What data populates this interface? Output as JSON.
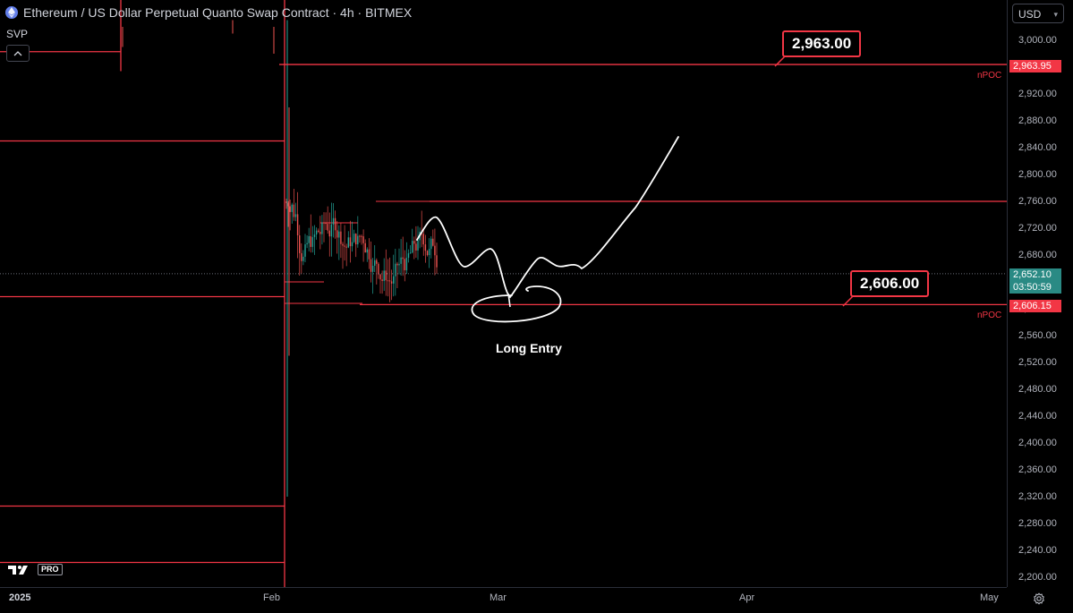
{
  "header": {
    "title": "Ethereum / US Dollar Perpetual Quanto Swap Contract · 4h · BITMEX",
    "indicator": "SVP",
    "collapse_icon": "chevron-up-icon"
  },
  "currency": {
    "label": "USD"
  },
  "chart_data": {
    "type": "line",
    "y_axis": {
      "ticks": [
        "3,000.00",
        "2,960.00",
        "2,920.00",
        "2,880.00",
        "2,840.00",
        "2,800.00",
        "2,760.00",
        "2,720.00",
        "2,680.00",
        "2,640.00",
        "2,600.00",
        "2,560.00",
        "2,520.00",
        "2,480.00",
        "2,440.00",
        "2,400.00",
        "2,360.00",
        "2,320.00",
        "2,280.00",
        "2,240.00",
        "2,200.00"
      ],
      "ylim": [
        2180,
        3032
      ]
    },
    "x_axis": {
      "ticks": [
        {
          "label": "2025",
          "bold": true
        },
        {
          "label": "Feb",
          "bold": false
        },
        {
          "label": "Mar",
          "bold": false
        },
        {
          "label": "Apr",
          "bold": false
        },
        {
          "label": "May",
          "bold": false
        }
      ]
    },
    "current_price": {
      "value": 2652.1,
      "label": "2,652.10",
      "countdown": "03:50:59"
    },
    "volume_profile_levels": [
      {
        "price": 2983,
        "from": "2025",
        "to": "Jan-mid"
      },
      {
        "price": 2954,
        "from": "Jan-mid",
        "to": "Jan-end"
      },
      {
        "price": 2850,
        "from": "2025",
        "to": "Feb"
      },
      {
        "price": 2618,
        "from": "2025",
        "to": "Feb"
      },
      {
        "price": 2306,
        "from": "2025",
        "to": "Feb"
      },
      {
        "price": 2222,
        "from": "2025",
        "to": "Feb"
      }
    ],
    "npoc_levels": [
      {
        "value": 2963.95,
        "label": "2,963.95",
        "tag": "nPOC"
      },
      {
        "value": 2606.15,
        "label": "2,606.15",
        "tag": "nPOC"
      }
    ],
    "resistance_level": {
      "value": 2760
    },
    "callouts": [
      {
        "label": "2,963.00",
        "value": 2963.0
      },
      {
        "label": "2,606.00",
        "value": 2606.0
      }
    ],
    "annotation": {
      "label": "Long Entry"
    },
    "colors": {
      "level": "#f23645",
      "up": "#26a69a",
      "down": "#ef5350",
      "drawing": "#ffffff",
      "background": "#000000"
    }
  },
  "footer": {
    "logo_text": "PRO",
    "settings_icon": "gear-icon"
  }
}
